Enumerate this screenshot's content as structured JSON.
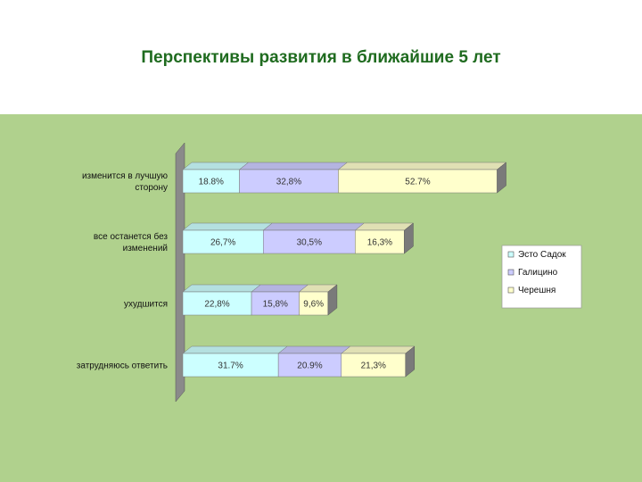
{
  "slide": {
    "title": "Перспективы развития в ближайшие 5 лет"
  },
  "colors": {
    "panel_bg": "#b0d18d",
    "wall": "#8a8a8a",
    "series": [
      "#ccffff",
      "#ccccff",
      "#ffffcc"
    ]
  },
  "chart_data": {
    "type": "bar",
    "orientation": "horizontal",
    "stacked": true,
    "three_d": true,
    "categories": [
      [
        "изменится в лучшую",
        "сторону"
      ],
      [
        "все останется без",
        "изменений"
      ],
      [
        "ухудшится"
      ],
      [
        "затрудняюсь ответить"
      ]
    ],
    "series": [
      {
        "name": "Эсто Садок",
        "values": [
          18.8,
          26.7,
          22.8,
          31.7
        ],
        "labels": [
          "18.8%",
          "26,7%",
          "22,8%",
          "31.7%"
        ]
      },
      {
        "name": "Галицино",
        "values": [
          32.8,
          30.5,
          15.8,
          20.9
        ],
        "labels": [
          "32,8%",
          "30,5%",
          "15,8%",
          "20.9%"
        ]
      },
      {
        "name": "Черешня",
        "values": [
          52.7,
          16.3,
          9.6,
          21.3
        ],
        "labels": [
          "52.7%",
          "16,3%",
          "9,6%",
          "21,3%"
        ]
      }
    ],
    "legend_position": "right",
    "grid": false
  }
}
